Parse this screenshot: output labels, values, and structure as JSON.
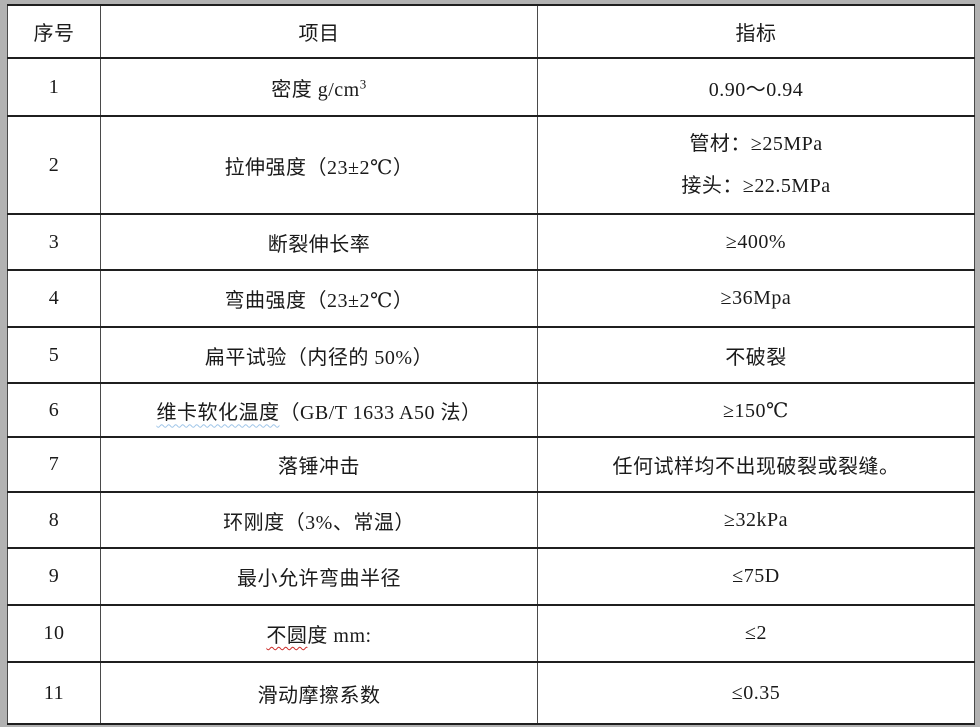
{
  "page": {
    "background_color": "#b2b2b2",
    "table_background": "#ffffff",
    "border_color_horizontal": "#1f1f1f",
    "border_color_vertical": "#4a4a4a",
    "text_color": "#1a1a1a",
    "squiggle_blue": "#9fc5e8",
    "squiggle_red": "#cc2a27"
  },
  "table": {
    "headers": {
      "col1": "序号",
      "col2": "项目",
      "col3": "指标"
    },
    "rows": [
      {
        "num": "1",
        "item": "密度 g/cm",
        "item_sup": "3",
        "indicator": "0.90～0.94"
      },
      {
        "num": "2",
        "item": "拉伸强度（23±2℃）",
        "indicator": "管材：≥25MPa",
        "indicator2": "接头：≥22.5MPa"
      },
      {
        "num": "3",
        "item": "断裂伸长率",
        "indicator": "≥400%"
      },
      {
        "num": "4",
        "item": "弯曲强度（23±2℃）",
        "indicator": "≥36Mpa"
      },
      {
        "num": "5",
        "item": "扁平试验（内径的 50%）",
        "indicator": "不破裂"
      },
      {
        "num": "6",
        "item_marked": "维卡软化温度",
        "item": "（GB/T 1633 A50 法）",
        "indicator": "≥150℃"
      },
      {
        "num": "7",
        "item": "落锤冲击",
        "indicator": "任何试样均不出现破裂或裂缝。"
      },
      {
        "num": "8",
        "item": "环刚度（3%、常温）",
        "indicator": "≥32kPa"
      },
      {
        "num": "9",
        "item": "最小允许弯曲半径",
        "indicator": "≤75D"
      },
      {
        "num": "10",
        "item_marked": "不圆",
        "item": "度 mm:",
        "indicator": "≤2"
      },
      {
        "num": "11",
        "item": "滑动摩擦系数",
        "indicator": "≤0.35"
      }
    ]
  }
}
